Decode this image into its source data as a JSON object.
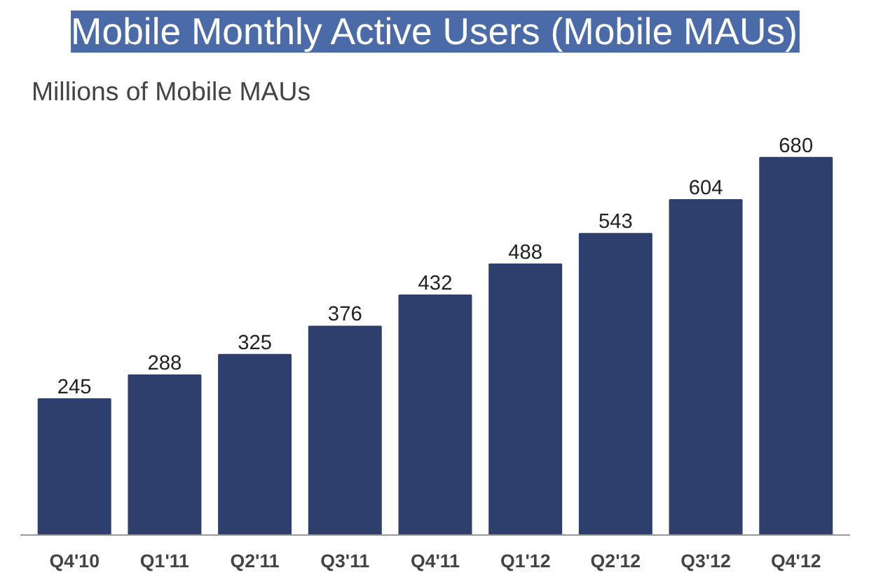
{
  "chart_data": {
    "type": "bar",
    "title": "Mobile Monthly Active Users (Mobile MAUs)",
    "subtitle": "Millions of Mobile MAUs",
    "categories": [
      "Q4'10",
      "Q1'11",
      "Q2'11",
      "Q3'11",
      "Q4'11",
      "Q1'12",
      "Q2'12",
      "Q3'12",
      "Q4'12"
    ],
    "values": [
      245,
      288,
      325,
      376,
      432,
      488,
      543,
      604,
      680
    ],
    "color": "#2e3f6e",
    "data_labels": true,
    "grid": false
  }
}
